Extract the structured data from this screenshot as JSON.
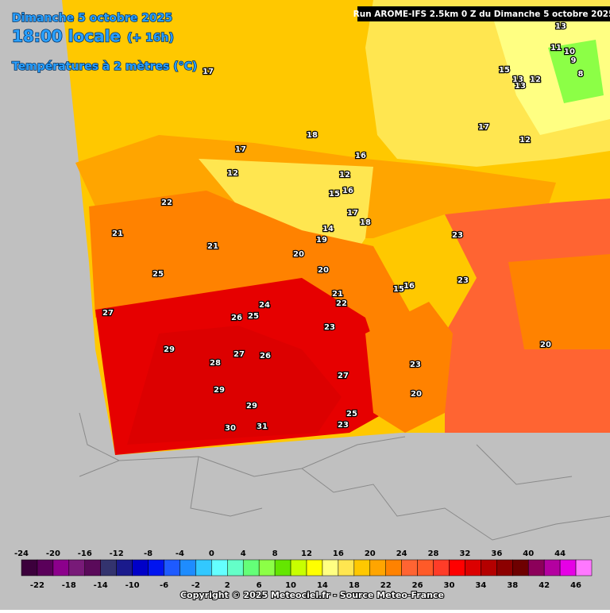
{
  "header": {
    "date": "Dimanche 5 octobre 2025",
    "time": "18:00 locale",
    "lead": "(+ 16h)",
    "field": "Températures à 2 mètres (°C)",
    "run": "Run AROME-IFS 2.5km 0 Z du Dimanche 5 octobre 2025"
  },
  "map_labels": [
    17,
    18,
    17,
    16,
    12,
    12,
    15,
    16,
    22,
    17,
    18,
    14,
    19,
    21,
    21,
    20,
    23,
    20,
    25,
    15,
    16,
    23,
    21,
    22,
    24,
    27,
    26,
    25,
    23,
    29,
    27,
    26,
    28,
    20,
    27,
    23,
    29,
    20,
    29,
    25,
    23,
    30,
    31,
    17,
    15,
    13,
    12,
    13,
    12,
    11,
    10,
    9,
    8,
    13
  ],
  "legend": {
    "ticks": [
      -24,
      -22,
      -20,
      -18,
      -16,
      -14,
      -12,
      -10,
      -8,
      -6,
      -4,
      -2,
      0,
      2,
      4,
      6,
      8,
      10,
      12,
      14,
      16,
      18,
      20,
      22,
      24,
      26,
      28,
      30,
      32,
      34,
      36,
      38,
      40,
      42,
      44,
      46
    ],
    "colors": [
      "#3c003c",
      "#5a005a",
      "#8c008c",
      "#781a78",
      "#5a0a5a",
      "#33336e",
      "#1a1a8c",
      "#0000c8",
      "#0014f0",
      "#1e5aff",
      "#1e8cff",
      "#32c8ff",
      "#64ffff",
      "#64ffc8",
      "#64ff78",
      "#8cff46",
      "#64e600",
      "#c8ff00",
      "#ffff00",
      "#ffff82",
      "#ffe650",
      "#ffc800",
      "#ffa500",
      "#ff8200",
      "#ff6432",
      "#ff5a28",
      "#ff3c28",
      "#ff0000",
      "#dc0000",
      "#b40000",
      "#8c0000",
      "#6e0000",
      "#8c005a",
      "#b400a0",
      "#e600e6",
      "#ff78ff"
    ]
  },
  "footer": {
    "copyright": "Copyright © 2025 Meteociel.fr - Source Meteo-France"
  }
}
